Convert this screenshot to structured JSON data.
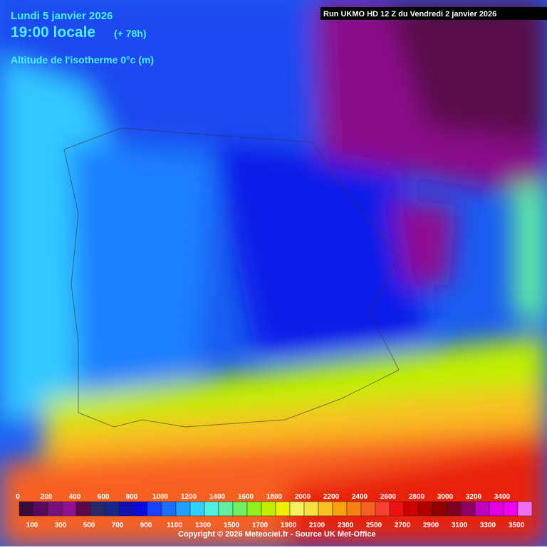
{
  "header": {
    "date": "Lundi 5 janvier 2026",
    "time": "19:00 locale",
    "lead": "(+ 78h)",
    "parameter": "Altitude de l'isotherme 0°c (m)",
    "run": "Run UKMO HD 12 Z du Vendredi 2 janvier 2026"
  },
  "legend": {
    "labels": [
      "0",
      "100",
      "200",
      "300",
      "400",
      "500",
      "600",
      "700",
      "800",
      "900",
      "1000",
      "1100",
      "1200",
      "1300",
      "1400",
      "1500",
      "1600",
      "1700",
      "1800",
      "1900",
      "2000",
      "2100",
      "2200",
      "2300",
      "2400",
      "2500",
      "2600",
      "2700",
      "2800",
      "2900",
      "3000",
      "3100",
      "3200",
      "3300",
      "3400",
      "3500"
    ],
    "colors": [
      "#3a0a3a",
      "#5a0a5a",
      "#7a107a",
      "#901090",
      "#5a0a48",
      "#2a2a6a",
      "#18288a",
      "#1010b0",
      "#0a0ae0",
      "#1a40ff",
      "#1a70ff",
      "#20a0ff",
      "#30d0ff",
      "#50f0e0",
      "#60f0a0",
      "#70f060",
      "#90f020",
      "#c0f000",
      "#f0f000",
      "#f8f060",
      "#f8e040",
      "#f8c020",
      "#f8a010",
      "#f88010",
      "#f86020",
      "#f84030",
      "#f01010",
      "#d00000",
      "#b00000",
      "#900000",
      "#800020",
      "#900060",
      "#c000c0",
      "#e000e0",
      "#f000f0",
      "#f070f0"
    ]
  },
  "footer": {
    "copyright": "Copyright © 2026 Meteociel.fr - Source UK Met-Office"
  }
}
